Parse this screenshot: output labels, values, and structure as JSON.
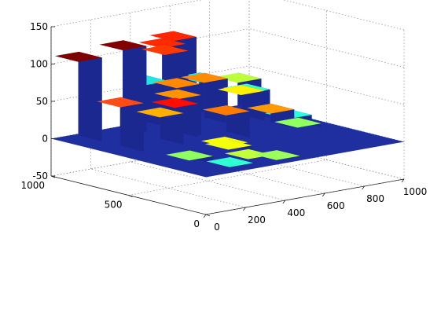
{
  "chart_data": {
    "type": "bar3",
    "title": "",
    "xlabel": "",
    "ylabel": "",
    "zlabel": "",
    "colormap": "jet",
    "grid": true,
    "xlim": [
      0,
      1000
    ],
    "ylim": [
      0,
      1000
    ],
    "zlim": [
      -50,
      150
    ],
    "xticks": [
      "0",
      "200",
      "400",
      "600",
      "800",
      "1000"
    ],
    "yticks": [
      "0",
      "500",
      "1000"
    ],
    "zticks": [
      "-50",
      "0",
      "50",
      "100",
      "150"
    ],
    "base_color": "#1f2fa0",
    "bars": [
      {
        "x": 60,
        "y": 630,
        "z": 65,
        "top": "#ff4c14"
      },
      {
        "x": 60,
        "y": 900,
        "z": 112,
        "top": "#7f0000"
      },
      {
        "x": 300,
        "y": 920,
        "z": 115,
        "top": "#830000"
      },
      {
        "x": 420,
        "y": 930,
        "z": 62,
        "top": "#1ee6e0"
      },
      {
        "x": 530,
        "y": 960,
        "z": 105,
        "top": "#ff2a00"
      },
      {
        "x": 600,
        "y": 980,
        "z": 110,
        "top": "#ff2600"
      },
      {
        "x": 470,
        "y": 790,
        "z": 63,
        "top": "#ff8a00"
      },
      {
        "x": 500,
        "y": 905,
        "z": 100,
        "top": "#ff3a00"
      },
      {
        "x": 640,
        "y": 830,
        "z": 60,
        "top": "#ff8c00"
      },
      {
        "x": 700,
        "y": 940,
        "z": 52,
        "top": "#18e8ff"
      },
      {
        "x": 260,
        "y": 630,
        "z": 42,
        "top": "#ffb000"
      },
      {
        "x": 390,
        "y": 700,
        "z": 45,
        "top": "#ff0d00"
      },
      {
        "x": 420,
        "y": 720,
        "z": 54,
        "top": "#ff9400"
      },
      {
        "x": 120,
        "y": 260,
        "z": 10,
        "top": "#90ff60"
      },
      {
        "x": 380,
        "y": 340,
        "z": 8,
        "top": "#f4ff0a"
      },
      {
        "x": 430,
        "y": 430,
        "z": 5,
        "top": "#f8ff08"
      },
      {
        "x": 540,
        "y": 560,
        "z": 35,
        "top": "#ff7c00"
      },
      {
        "x": 780,
        "y": 770,
        "z": 40,
        "top": "#fff200"
      },
      {
        "x": 830,
        "y": 800,
        "z": 38,
        "top": "#38ffc4"
      },
      {
        "x": 880,
        "y": 920,
        "z": 44,
        "top": "#bcff3a"
      },
      {
        "x": 780,
        "y": 580,
        "z": 25,
        "top": "#ff9a00"
      },
      {
        "x": 900,
        "y": 620,
        "z": 10,
        "top": "#28ffe0"
      },
      {
        "x": 870,
        "y": 520,
        "z": 5,
        "top": "#90ff60"
      },
      {
        "x": 370,
        "y": 200,
        "z": 3,
        "top": "#c2ff3a"
      },
      {
        "x": 230,
        "y": 140,
        "z": 2,
        "top": "#30ffd2"
      },
      {
        "x": 450,
        "y": 120,
        "z": 2,
        "top": "#9cff5c"
      }
    ]
  }
}
